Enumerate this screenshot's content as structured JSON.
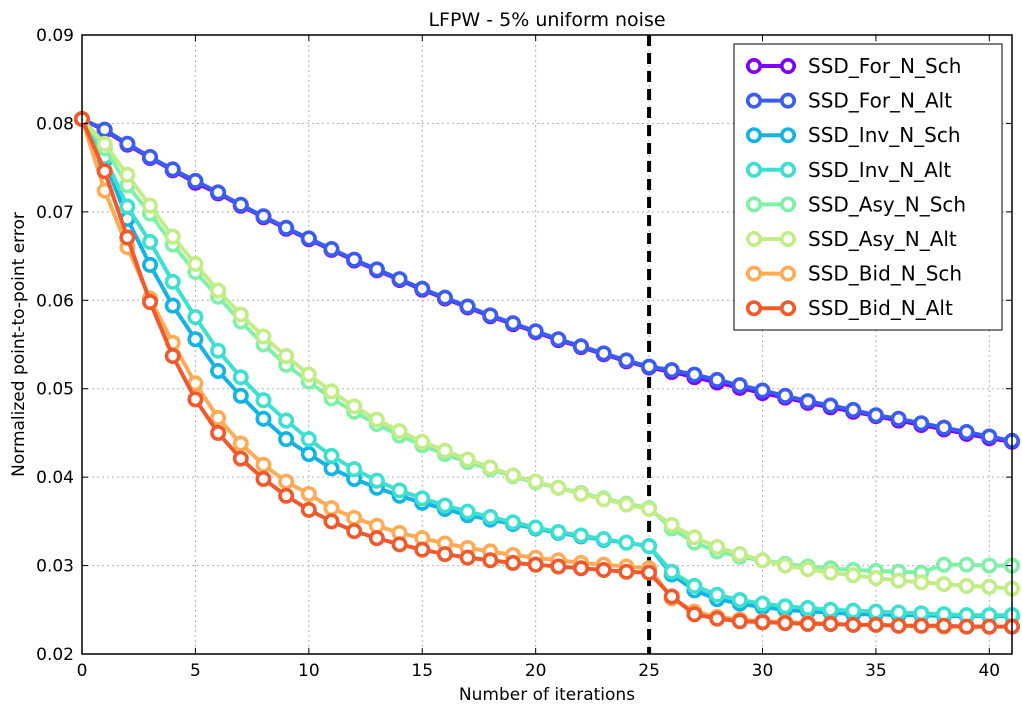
{
  "chart_data": {
    "type": "line",
    "title": "LFPW - 5% uniform noise",
    "xlabel": "Number of iterations",
    "ylabel": "Normalized point-to-point error",
    "xlim": [
      0,
      41
    ],
    "ylim": [
      0.02,
      0.09
    ],
    "xticks": [
      0,
      5,
      10,
      15,
      20,
      25,
      30,
      35,
      40
    ],
    "yticks": [
      0.02,
      0.03,
      0.04,
      0.05,
      0.06,
      0.07,
      0.08,
      0.09
    ],
    "xtick_labels": [
      "0",
      "5",
      "10",
      "15",
      "20",
      "25",
      "30",
      "35",
      "40"
    ],
    "ytick_labels": [
      "0.02",
      "0.03",
      "0.04",
      "0.05",
      "0.06",
      "0.07",
      "0.08",
      "0.09"
    ],
    "grid": true,
    "legend_position": "top-right",
    "vline": {
      "x": 25,
      "style": "dashed",
      "color": "#000000"
    },
    "x": [
      0,
      1,
      2,
      3,
      4,
      5,
      6,
      7,
      8,
      9,
      10,
      11,
      12,
      13,
      14,
      15,
      16,
      17,
      18,
      19,
      20,
      21,
      22,
      23,
      24,
      25,
      26,
      27,
      28,
      29,
      30,
      31,
      32,
      33,
      34,
      35,
      36,
      37,
      38,
      39,
      40,
      41
    ],
    "series": [
      {
        "name": "SSD_For_N_Sch",
        "color": "#8000ff",
        "values": [
          0.0805,
          0.0792,
          0.0776,
          0.0761,
          0.0747,
          0.0733,
          0.0721,
          0.0707,
          0.0694,
          0.0681,
          0.0669,
          0.0657,
          0.0645,
          0.0634,
          0.0623,
          0.0612,
          0.0602,
          0.0592,
          0.0582,
          0.0573,
          0.0564,
          0.0555,
          0.0547,
          0.0539,
          0.0531,
          0.0524,
          0.0519,
          0.0513,
          0.0507,
          0.0501,
          0.0495,
          0.049,
          0.0484,
          0.0479,
          0.0474,
          0.0469,
          0.0464,
          0.0459,
          0.0454,
          0.0449,
          0.0444,
          0.044
        ]
      },
      {
        "name": "SSD_For_N_Alt",
        "color": "#3a5cf0",
        "values": [
          0.0805,
          0.0793,
          0.0777,
          0.0762,
          0.0748,
          0.0735,
          0.0722,
          0.0708,
          0.0695,
          0.0682,
          0.067,
          0.0658,
          0.0646,
          0.0635,
          0.0624,
          0.0613,
          0.0603,
          0.0593,
          0.0583,
          0.0574,
          0.0565,
          0.0556,
          0.0548,
          0.054,
          0.0532,
          0.0525,
          0.0521,
          0.0516,
          0.051,
          0.0504,
          0.0498,
          0.0492,
          0.0486,
          0.0481,
          0.0476,
          0.047,
          0.0466,
          0.0461,
          0.0456,
          0.0451,
          0.0446,
          0.0441
        ]
      },
      {
        "name": "SSD_Inv_N_Sch",
        "color": "#15b2e4",
        "values": [
          0.0805,
          0.0758,
          0.0692,
          0.064,
          0.0594,
          0.0556,
          0.052,
          0.0492,
          0.0466,
          0.0443,
          0.0426,
          0.041,
          0.0398,
          0.0388,
          0.0379,
          0.0371,
          0.0364,
          0.0357,
          0.0352,
          0.0347,
          0.0342,
          0.0337,
          0.0333,
          0.0329,
          0.0326,
          0.0322,
          0.029,
          0.0272,
          0.0262,
          0.0257,
          0.0253,
          0.025,
          0.0248,
          0.0247,
          0.0245,
          0.0245,
          0.0244,
          0.0244,
          0.0243,
          0.0243,
          0.0243,
          0.0243
        ]
      },
      {
        "name": "SSD_Inv_N_Alt",
        "color": "#3de0d0",
        "values": [
          0.0805,
          0.0762,
          0.0706,
          0.0666,
          0.0621,
          0.0581,
          0.0543,
          0.0513,
          0.0487,
          0.0464,
          0.0443,
          0.0424,
          0.0409,
          0.0396,
          0.0385,
          0.0376,
          0.0368,
          0.0361,
          0.0355,
          0.0349,
          0.0343,
          0.0338,
          0.0334,
          0.033,
          0.0326,
          0.0322,
          0.0293,
          0.0277,
          0.0267,
          0.0261,
          0.0257,
          0.0254,
          0.0252,
          0.025,
          0.0249,
          0.0248,
          0.0247,
          0.0246,
          0.0245,
          0.0244,
          0.0244,
          0.0244
        ]
      },
      {
        "name": "SSD_Asy_N_Sch",
        "color": "#7ff0a8",
        "values": [
          0.0805,
          0.0772,
          0.073,
          0.0698,
          0.0663,
          0.0632,
          0.0604,
          0.0576,
          0.055,
          0.0527,
          0.0508,
          0.0489,
          0.0474,
          0.046,
          0.0447,
          0.0436,
          0.0426,
          0.0417,
          0.0409,
          0.0401,
          0.0394,
          0.0388,
          0.0382,
          0.0376,
          0.037,
          0.0365,
          0.0342,
          0.0326,
          0.0316,
          0.031,
          0.0306,
          0.0302,
          0.0299,
          0.0297,
          0.0295,
          0.0294,
          0.0293,
          0.0292,
          0.0301,
          0.0301,
          0.03,
          0.03
        ]
      },
      {
        "name": "SSD_Asy_N_Alt",
        "color": "#c2ec86",
        "values": [
          0.0805,
          0.0777,
          0.0742,
          0.0707,
          0.0672,
          0.0641,
          0.0611,
          0.0584,
          0.0559,
          0.0537,
          0.0516,
          0.0497,
          0.048,
          0.0465,
          0.0452,
          0.044,
          0.043,
          0.042,
          0.0411,
          0.0402,
          0.0395,
          0.0388,
          0.0381,
          0.0375,
          0.0369,
          0.0364,
          0.0346,
          0.0332,
          0.0321,
          0.0313,
          0.0306,
          0.03,
          0.0296,
          0.0292,
          0.0289,
          0.0286,
          0.0283,
          0.0281,
          0.0279,
          0.0277,
          0.0276,
          0.0274
        ]
      },
      {
        "name": "SSD_Bid_N_Sch",
        "color": "#ffaa55",
        "values": [
          0.0805,
          0.0724,
          0.066,
          0.0602,
          0.0552,
          0.0506,
          0.0467,
          0.0438,
          0.0414,
          0.0395,
          0.0381,
          0.0365,
          0.0354,
          0.0345,
          0.0337,
          0.0331,
          0.0325,
          0.032,
          0.0316,
          0.0312,
          0.0309,
          0.0306,
          0.0303,
          0.0301,
          0.0299,
          0.0297,
          0.0263,
          0.0248,
          0.0242,
          0.0239,
          0.0237,
          0.0236,
          0.0235,
          0.0234,
          0.0233,
          0.0233,
          0.0232,
          0.0232,
          0.0231,
          0.0231,
          0.0231,
          0.0231
        ]
      },
      {
        "name": "SSD_Bid_N_Alt",
        "color": "#f0592c",
        "values": [
          0.0805,
          0.0746,
          0.0671,
          0.0598,
          0.0537,
          0.0488,
          0.045,
          0.0421,
          0.0398,
          0.0379,
          0.0363,
          0.035,
          0.0339,
          0.0331,
          0.0324,
          0.0318,
          0.0313,
          0.0309,
          0.0306,
          0.0303,
          0.0301,
          0.0299,
          0.0297,
          0.0295,
          0.0293,
          0.0292,
          0.0265,
          0.0245,
          0.024,
          0.0237,
          0.0236,
          0.0235,
          0.0234,
          0.0234,
          0.0233,
          0.0233,
          0.0232,
          0.0232,
          0.0232,
          0.0231,
          0.0231,
          0.0231
        ]
      }
    ]
  }
}
